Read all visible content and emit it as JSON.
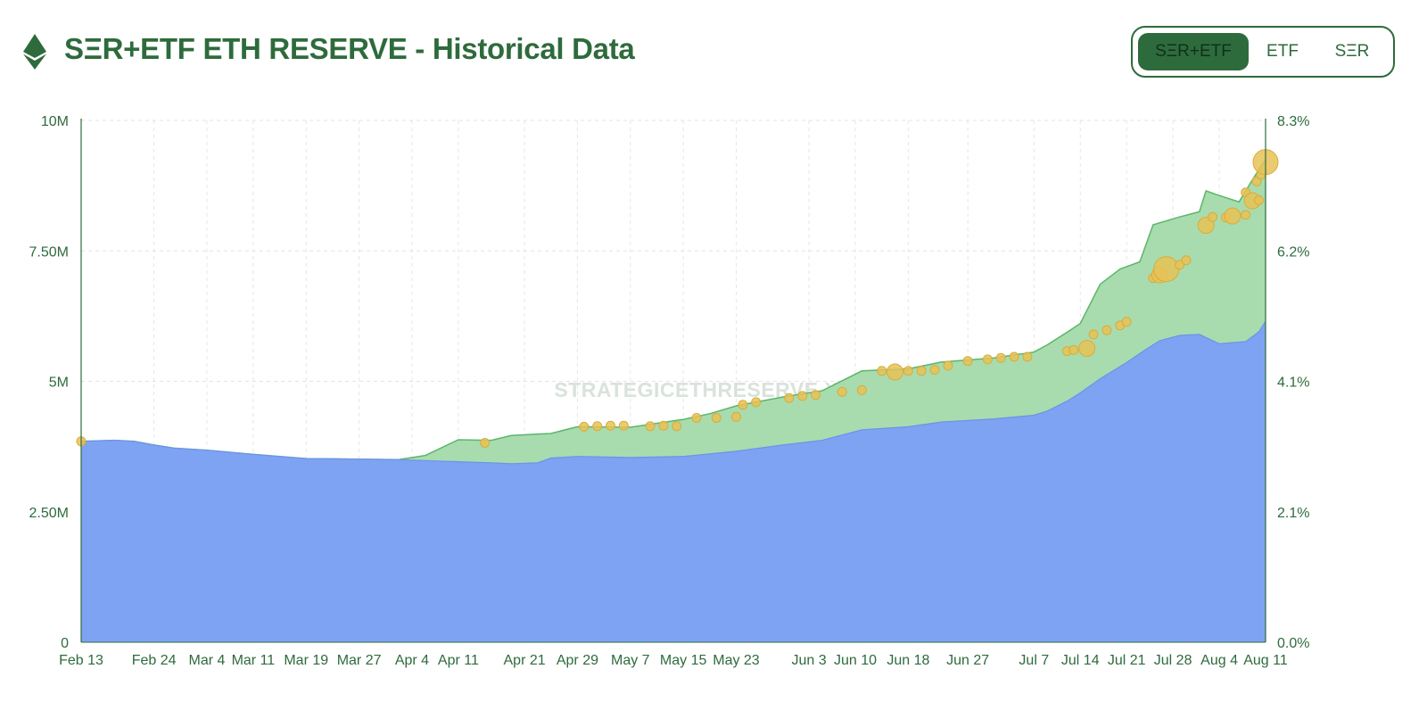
{
  "header": {
    "title": "SΞR+ETF ETH RESERVE - Historical Data",
    "logo_icon": "ethereum-diamond-icon",
    "toggle": [
      {
        "label": "SΞR+ETF",
        "active": true
      },
      {
        "label": "ETF",
        "active": false
      },
      {
        "label": "SΞR",
        "active": false
      }
    ]
  },
  "colors": {
    "brand_green": "#2e6b3c",
    "etf_fill": "#7ea3f2",
    "ser_fill": "#a8dcaf",
    "ser_line": "#5bb66a",
    "bubble": "#e8c256"
  },
  "chart_data": {
    "type": "area",
    "watermark": "STRATEGICETHRESERVE.XYZ",
    "x_tick_labels": [
      "Feb 13",
      "Feb 24",
      "Mar 4",
      "Mar 11",
      "Mar 19",
      "Mar 27",
      "Apr 4",
      "Apr 11",
      "Apr 21",
      "Apr 29",
      "May 7",
      "May 15",
      "May 23",
      "Jun 3",
      "Jun 10",
      "Jun 18",
      "Jun 27",
      "Jul 7",
      "Jul 14",
      "Jul 21",
      "Jul 28",
      "Aug 4",
      "Aug 11"
    ],
    "x_tick_days": [
      0,
      11,
      19,
      26,
      34,
      42,
      50,
      57,
      67,
      75,
      83,
      91,
      99,
      110,
      117,
      125,
      134,
      144,
      151,
      158,
      165,
      172,
      179
    ],
    "xlim_days": [
      0,
      179
    ],
    "y_left": {
      "ticks": [
        "0",
        "2.50M",
        "5M",
        "7.50M",
        "10M"
      ],
      "ylim": [
        0,
        10000000
      ]
    },
    "y_right": {
      "ticks": [
        "0.0%",
        "2.1%",
        "4.1%",
        "6.2%",
        "8.3%"
      ],
      "ylim": [
        0,
        8.3
      ]
    },
    "grid": true,
    "series": [
      {
        "name": "ETF",
        "points": [
          [
            0,
            3850000
          ],
          [
            5,
            3870000
          ],
          [
            8,
            3850000
          ],
          [
            11,
            3780000
          ],
          [
            14,
            3720000
          ],
          [
            19,
            3680000
          ],
          [
            26,
            3600000
          ],
          [
            34,
            3520000
          ],
          [
            42,
            3510000
          ],
          [
            48,
            3500000
          ],
          [
            57,
            3460000
          ],
          [
            62,
            3440000
          ],
          [
            65,
            3420000
          ],
          [
            69,
            3440000
          ],
          [
            71,
            3530000
          ],
          [
            75,
            3560000
          ],
          [
            83,
            3540000
          ],
          [
            91,
            3560000
          ],
          [
            99,
            3660000
          ],
          [
            106,
            3780000
          ],
          [
            112,
            3870000
          ],
          [
            118,
            4070000
          ],
          [
            125,
            4130000
          ],
          [
            130,
            4220000
          ],
          [
            138,
            4280000
          ],
          [
            144,
            4350000
          ],
          [
            146,
            4430000
          ],
          [
            149,
            4620000
          ],
          [
            151,
            4780000
          ],
          [
            154,
            5050000
          ],
          [
            158,
            5360000
          ],
          [
            161,
            5620000
          ],
          [
            163,
            5780000
          ],
          [
            166,
            5880000
          ],
          [
            169,
            5900000
          ],
          [
            172,
            5720000
          ],
          [
            176,
            5760000
          ],
          [
            178,
            5950000
          ],
          [
            179,
            6150000
          ]
        ]
      },
      {
        "name": "SΞR+ETF",
        "points": [
          [
            0,
            3850000
          ],
          [
            5,
            3870000
          ],
          [
            8,
            3850000
          ],
          [
            11,
            3780000
          ],
          [
            14,
            3720000
          ],
          [
            19,
            3680000
          ],
          [
            26,
            3600000
          ],
          [
            34,
            3520000
          ],
          [
            42,
            3510000
          ],
          [
            48,
            3500000
          ],
          [
            52,
            3580000
          ],
          [
            57,
            3880000
          ],
          [
            62,
            3870000
          ],
          [
            65,
            3960000
          ],
          [
            69,
            3990000
          ],
          [
            71,
            4000000
          ],
          [
            75,
            4130000
          ],
          [
            83,
            4120000
          ],
          [
            91,
            4270000
          ],
          [
            95,
            4380000
          ],
          [
            99,
            4530000
          ],
          [
            106,
            4700000
          ],
          [
            112,
            4820000
          ],
          [
            118,
            5200000
          ],
          [
            125,
            5240000
          ],
          [
            130,
            5370000
          ],
          [
            138,
            5450000
          ],
          [
            144,
            5560000
          ],
          [
            146,
            5700000
          ],
          [
            149,
            5940000
          ],
          [
            151,
            6110000
          ],
          [
            154,
            6860000
          ],
          [
            157,
            7150000
          ],
          [
            160,
            7290000
          ],
          [
            162,
            8000000
          ],
          [
            166,
            8150000
          ],
          [
            169,
            8250000
          ],
          [
            170,
            8650000
          ],
          [
            172,
            8560000
          ],
          [
            175,
            8440000
          ],
          [
            177,
            8860000
          ],
          [
            179,
            9260000
          ]
        ]
      }
    ],
    "purchases": [
      [
        0,
        3850000,
        1
      ],
      [
        61,
        3820000,
        1
      ],
      [
        76,
        4130000,
        1
      ],
      [
        78,
        4140000,
        1
      ],
      [
        80,
        4150000,
        1
      ],
      [
        82,
        4150000,
        1
      ],
      [
        86,
        4140000,
        1
      ],
      [
        88,
        4150000,
        1
      ],
      [
        90,
        4140000,
        1
      ],
      [
        93,
        4300000,
        1
      ],
      [
        96,
        4300000,
        1
      ],
      [
        99,
        4320000,
        1
      ],
      [
        100,
        4550000,
        1
      ],
      [
        102,
        4600000,
        1
      ],
      [
        107,
        4680000,
        1
      ],
      [
        109,
        4720000,
        1
      ],
      [
        111,
        4740000,
        1
      ],
      [
        115,
        4800000,
        1
      ],
      [
        118,
        4830000,
        1
      ],
      [
        121,
        5200000,
        1
      ],
      [
        123,
        5180000,
        2
      ],
      [
        125,
        5200000,
        1
      ],
      [
        127,
        5200000,
        1
      ],
      [
        129,
        5220000,
        1
      ],
      [
        131,
        5300000,
        1
      ],
      [
        134,
        5390000,
        1
      ],
      [
        137,
        5420000,
        1
      ],
      [
        139,
        5450000,
        1
      ],
      [
        141,
        5470000,
        1
      ],
      [
        143,
        5470000,
        1
      ],
      [
        149,
        5580000,
        1
      ],
      [
        150,
        5600000,
        1
      ],
      [
        152,
        5630000,
        2
      ],
      [
        153,
        5900000,
        1
      ],
      [
        155,
        5980000,
        1
      ],
      [
        157,
        6070000,
        1
      ],
      [
        158,
        6140000,
        1
      ],
      [
        162,
        6980000,
        1
      ],
      [
        163,
        7040000,
        2
      ],
      [
        164,
        7150000,
        3
      ],
      [
        166,
        7230000,
        1
      ],
      [
        167,
        7320000,
        1
      ],
      [
        170,
        7990000,
        2
      ],
      [
        171,
        8150000,
        1
      ],
      [
        173,
        8140000,
        1
      ],
      [
        174,
        8170000,
        2
      ],
      [
        176,
        8190000,
        1
      ],
      [
        176,
        8620000,
        1
      ],
      [
        177,
        8460000,
        2
      ],
      [
        178,
        8470000,
        1
      ],
      [
        181,
        8830000,
        1
      ],
      [
        182,
        8960000,
        1
      ],
      [
        183,
        9200000,
        3
      ]
    ]
  }
}
